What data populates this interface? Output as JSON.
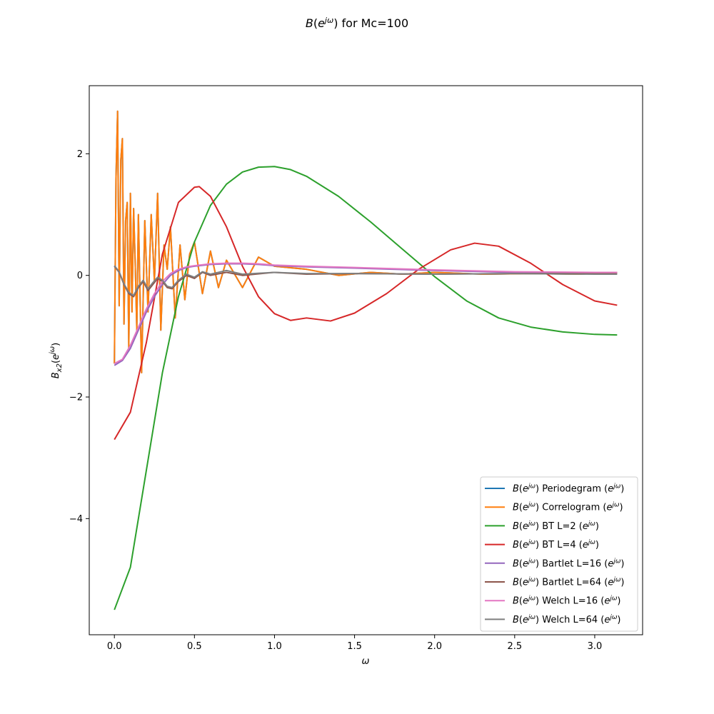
{
  "chart_data": {
    "type": "line",
    "title": "B(e^{jω}) for Mc=100",
    "xlabel": "ω",
    "ylabel": "B_{x2}(e^{jω})",
    "xlim": [
      -0.157,
      3.299
    ],
    "ylim": [
      -5.91,
      3.12
    ],
    "xticks": [
      0.0,
      0.5,
      1.0,
      1.5,
      2.0,
      2.5,
      3.0
    ],
    "xtick_labels": [
      "0.0",
      "0.5",
      "1.0",
      "1.5",
      "2.0",
      "2.5",
      "3.0"
    ],
    "yticks": [
      -4,
      -2,
      0,
      2
    ],
    "ytick_labels": [
      "−4",
      "−2",
      "0",
      "2"
    ],
    "grid": false,
    "legend_position": "lower-right",
    "series": [
      {
        "name": "B(e^{jω}) Periodegram (e^{jω})",
        "color": "#1f77b4",
        "x": [
          0.0,
          0.01,
          0.02,
          0.03,
          0.04,
          0.05,
          0.06,
          0.07,
          0.08,
          0.09,
          0.1,
          0.11,
          0.12,
          0.13,
          0.14,
          0.15,
          0.17,
          0.19,
          0.21,
          0.23,
          0.25,
          0.27,
          0.29,
          0.31,
          0.33,
          0.35,
          0.38,
          0.41,
          0.44,
          0.47,
          0.5,
          0.55,
          0.6,
          0.65,
          0.7,
          0.8,
          0.9,
          1.0,
          1.2,
          1.4,
          1.6,
          1.8,
          2.0,
          2.3,
          2.6,
          2.9,
          3.14
        ],
        "y": [
          -1.45,
          1.6,
          2.7,
          -0.5,
          1.9,
          2.25,
          -0.8,
          0.9,
          1.2,
          -1.2,
          1.35,
          -0.6,
          1.1,
          0.2,
          -0.9,
          1.0,
          -1.6,
          0.9,
          -0.6,
          1.0,
          -0.1,
          1.35,
          -0.9,
          0.5,
          0.1,
          0.8,
          -0.7,
          0.5,
          -0.4,
          0.35,
          0.55,
          -0.3,
          0.4,
          -0.2,
          0.25,
          -0.2,
          0.3,
          0.15,
          0.1,
          0.0,
          0.05,
          0.02,
          0.05,
          0.02,
          0.03,
          0.02,
          0.05
        ]
      },
      {
        "name": "B(e^{jω}) Correlogram (e^{jω})",
        "color": "#ff7f0e",
        "x": [
          0.0,
          0.01,
          0.02,
          0.03,
          0.04,
          0.05,
          0.06,
          0.07,
          0.08,
          0.09,
          0.1,
          0.11,
          0.12,
          0.13,
          0.14,
          0.15,
          0.17,
          0.19,
          0.21,
          0.23,
          0.25,
          0.27,
          0.29,
          0.31,
          0.33,
          0.35,
          0.38,
          0.41,
          0.44,
          0.47,
          0.5,
          0.55,
          0.6,
          0.65,
          0.7,
          0.8,
          0.9,
          1.0,
          1.2,
          1.4,
          1.6,
          1.8,
          2.0,
          2.3,
          2.6,
          2.9,
          3.14
        ],
        "y": [
          -1.45,
          1.6,
          2.7,
          -0.5,
          1.9,
          2.25,
          -0.8,
          0.9,
          1.2,
          -1.2,
          1.35,
          -0.6,
          1.1,
          0.2,
          -0.9,
          1.0,
          -1.6,
          0.9,
          -0.6,
          1.0,
          -0.1,
          1.35,
          -0.9,
          0.5,
          0.1,
          0.8,
          -0.7,
          0.5,
          -0.4,
          0.35,
          0.55,
          -0.3,
          0.4,
          -0.2,
          0.25,
          -0.2,
          0.3,
          0.15,
          0.1,
          0.0,
          0.05,
          0.02,
          0.05,
          0.02,
          0.03,
          0.02,
          0.05
        ]
      },
      {
        "name": "B(e^{jω}) BT L=2 (e^{jω})",
        "color": "#2ca02c",
        "x": [
          0.0,
          0.1,
          0.2,
          0.3,
          0.4,
          0.5,
          0.6,
          0.7,
          0.8,
          0.9,
          1.0,
          1.1,
          1.2,
          1.4,
          1.6,
          1.8,
          2.0,
          2.2,
          2.4,
          2.6,
          2.8,
          3.0,
          3.14
        ],
        "y": [
          -5.5,
          -4.8,
          -3.2,
          -1.6,
          -0.35,
          0.55,
          1.15,
          1.5,
          1.7,
          1.78,
          1.79,
          1.74,
          1.63,
          1.3,
          0.88,
          0.43,
          -0.02,
          -0.42,
          -0.7,
          -0.85,
          -0.93,
          -0.97,
          -0.98
        ]
      },
      {
        "name": "B(e^{jω}) BT L=4 (e^{jω})",
        "color": "#d62728",
        "x": [
          0.0,
          0.1,
          0.2,
          0.3,
          0.4,
          0.5,
          0.53,
          0.6,
          0.7,
          0.8,
          0.9,
          1.0,
          1.1,
          1.2,
          1.35,
          1.5,
          1.7,
          1.9,
          2.1,
          2.25,
          2.4,
          2.6,
          2.8,
          3.0,
          3.14
        ],
        "y": [
          -2.7,
          -2.25,
          -1.1,
          0.35,
          1.2,
          1.45,
          1.46,
          1.3,
          0.8,
          0.15,
          -0.35,
          -0.63,
          -0.74,
          -0.7,
          -0.75,
          -0.62,
          -0.3,
          0.1,
          0.42,
          0.53,
          0.48,
          0.2,
          -0.15,
          -0.42,
          -0.49
        ]
      },
      {
        "name": "B(e^{jω}) Bartlet L=16 (e^{jω})",
        "color": "#9467bd",
        "x": [
          0.0,
          0.05,
          0.1,
          0.15,
          0.2,
          0.25,
          0.3,
          0.35,
          0.4,
          0.45,
          0.5,
          0.6,
          0.7,
          0.8,
          0.9,
          1.0,
          1.2,
          1.5,
          2.0,
          2.5,
          3.0,
          3.14
        ],
        "y": [
          -1.48,
          -1.4,
          -1.2,
          -0.9,
          -0.6,
          -0.35,
          -0.15,
          0.0,
          0.08,
          0.13,
          0.15,
          0.18,
          0.19,
          0.19,
          0.18,
          0.16,
          0.14,
          0.12,
          0.08,
          0.05,
          0.04,
          0.04
        ]
      },
      {
        "name": "B(e^{jω}) Bartlet L=64 (e^{jω})",
        "color": "#8c564b",
        "x": [
          0.0,
          0.03,
          0.06,
          0.09,
          0.12,
          0.15,
          0.18,
          0.21,
          0.24,
          0.27,
          0.3,
          0.33,
          0.36,
          0.4,
          0.45,
          0.5,
          0.55,
          0.6,
          0.7,
          0.8,
          1.0,
          1.2,
          1.5,
          2.0,
          2.5,
          3.0,
          3.14
        ],
        "y": [
          0.15,
          0.05,
          -0.15,
          -0.3,
          -0.35,
          -0.2,
          -0.1,
          -0.25,
          -0.15,
          -0.05,
          -0.1,
          -0.2,
          -0.22,
          -0.1,
          0.0,
          -0.05,
          0.05,
          0.0,
          0.05,
          0.0,
          0.05,
          0.02,
          0.03,
          0.02,
          0.03,
          0.03,
          0.03
        ]
      },
      {
        "name": "B(e^{jω}) Welch L=16 (e^{jω})",
        "color": "#e377c2",
        "x": [
          0.0,
          0.05,
          0.1,
          0.15,
          0.2,
          0.25,
          0.3,
          0.35,
          0.4,
          0.45,
          0.5,
          0.6,
          0.7,
          0.8,
          0.9,
          1.0,
          1.2,
          1.5,
          2.0,
          2.5,
          3.0,
          3.14
        ],
        "y": [
          -1.45,
          -1.38,
          -1.15,
          -0.85,
          -0.55,
          -0.3,
          -0.1,
          0.03,
          0.1,
          0.14,
          0.16,
          0.19,
          0.2,
          0.2,
          0.19,
          0.17,
          0.15,
          0.13,
          0.09,
          0.06,
          0.05,
          0.05
        ]
      },
      {
        "name": "B(e^{jω}) Welch L=64 (e^{jω})",
        "color": "#7f7f7f",
        "x": [
          0.0,
          0.03,
          0.06,
          0.09,
          0.12,
          0.15,
          0.18,
          0.21,
          0.24,
          0.27,
          0.3,
          0.33,
          0.36,
          0.4,
          0.45,
          0.5,
          0.55,
          0.6,
          0.7,
          0.8,
          1.0,
          1.2,
          1.5,
          2.0,
          2.5,
          3.0,
          3.14
        ],
        "y": [
          0.16,
          0.06,
          -0.14,
          -0.28,
          -0.33,
          -0.18,
          -0.08,
          -0.22,
          -0.12,
          -0.03,
          -0.08,
          -0.18,
          -0.2,
          -0.08,
          0.02,
          -0.03,
          0.06,
          0.02,
          0.08,
          0.02,
          0.05,
          0.03,
          0.03,
          0.02,
          0.03,
          0.02,
          0.02
        ]
      }
    ]
  }
}
